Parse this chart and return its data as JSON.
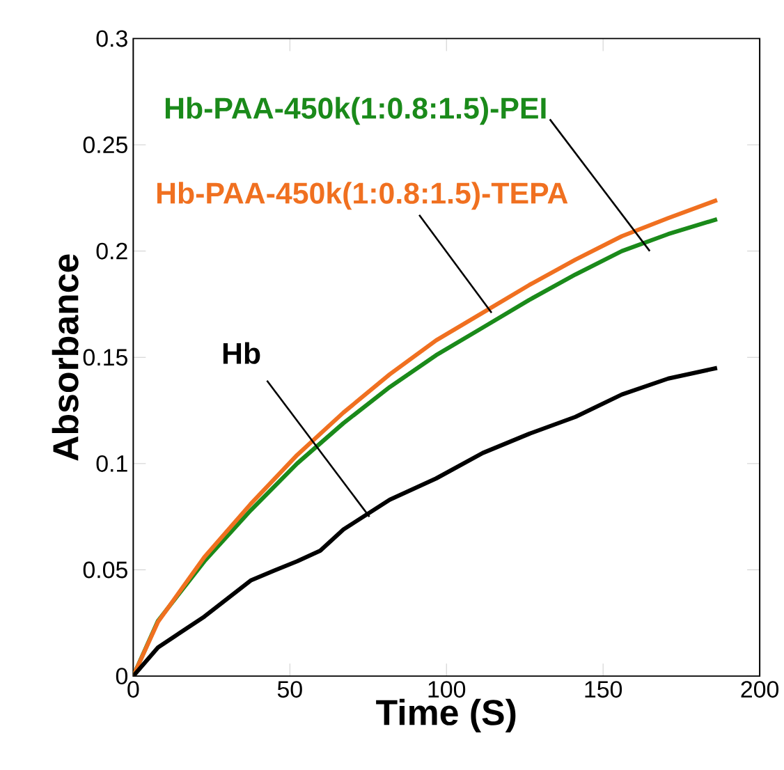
{
  "chart_data": {
    "type": "line",
    "xlabel": "Time (S)",
    "ylabel": "Absorbance",
    "xlim": [
      0,
      200
    ],
    "ylim": [
      0,
      0.3
    ],
    "xticks": [
      0,
      50,
      100,
      150,
      200
    ],
    "yticks": [
      0,
      0.05,
      0.1,
      0.15,
      0.2,
      0.25,
      0.3
    ],
    "grid": false,
    "marker": "none",
    "line_style": "solid",
    "series": [
      {
        "name": "Hb-PAA-450k(1:0.8:1.5)-PEI",
        "color": "#1a8a1a",
        "x": [
          0,
          7.9,
          22.7,
          37.5,
          52.3,
          67.1,
          81.9,
          96.7,
          111.6,
          126.4,
          141.2,
          156,
          170.8,
          186.4
        ],
        "values": [
          0,
          0.026,
          0.054,
          0.078,
          0.1,
          0.119,
          0.136,
          0.151,
          0.164,
          0.177,
          0.189,
          0.2,
          0.208,
          0.215
        ]
      },
      {
        "name": "Hb-PAA-450k(1:0.8:1.5)-TEPA",
        "color": "#f07020",
        "x": [
          0,
          7.9,
          22.7,
          37.5,
          52.3,
          67.1,
          81.9,
          96.7,
          111.6,
          126.4,
          141.2,
          156,
          170.8,
          186.4
        ],
        "values": [
          0,
          0.0255,
          0.056,
          0.081,
          0.104,
          0.124,
          0.142,
          0.158,
          0.171,
          0.184,
          0.196,
          0.207,
          0.2155,
          0.224
        ]
      },
      {
        "name": "Hb",
        "color": "#000000",
        "x": [
          0,
          7.9,
          22.7,
          37.5,
          44.9,
          52.3,
          59.7,
          67.1,
          81.9,
          96.7,
          111.6,
          126.4,
          141.2,
          156,
          170.8,
          186.4
        ],
        "values": [
          0,
          0.0135,
          0.028,
          0.045,
          0.0496,
          0.054,
          0.059,
          0.069,
          0.083,
          0.093,
          0.105,
          0.114,
          0.122,
          0.1325,
          0.14,
          0.145
        ]
      }
    ]
  }
}
